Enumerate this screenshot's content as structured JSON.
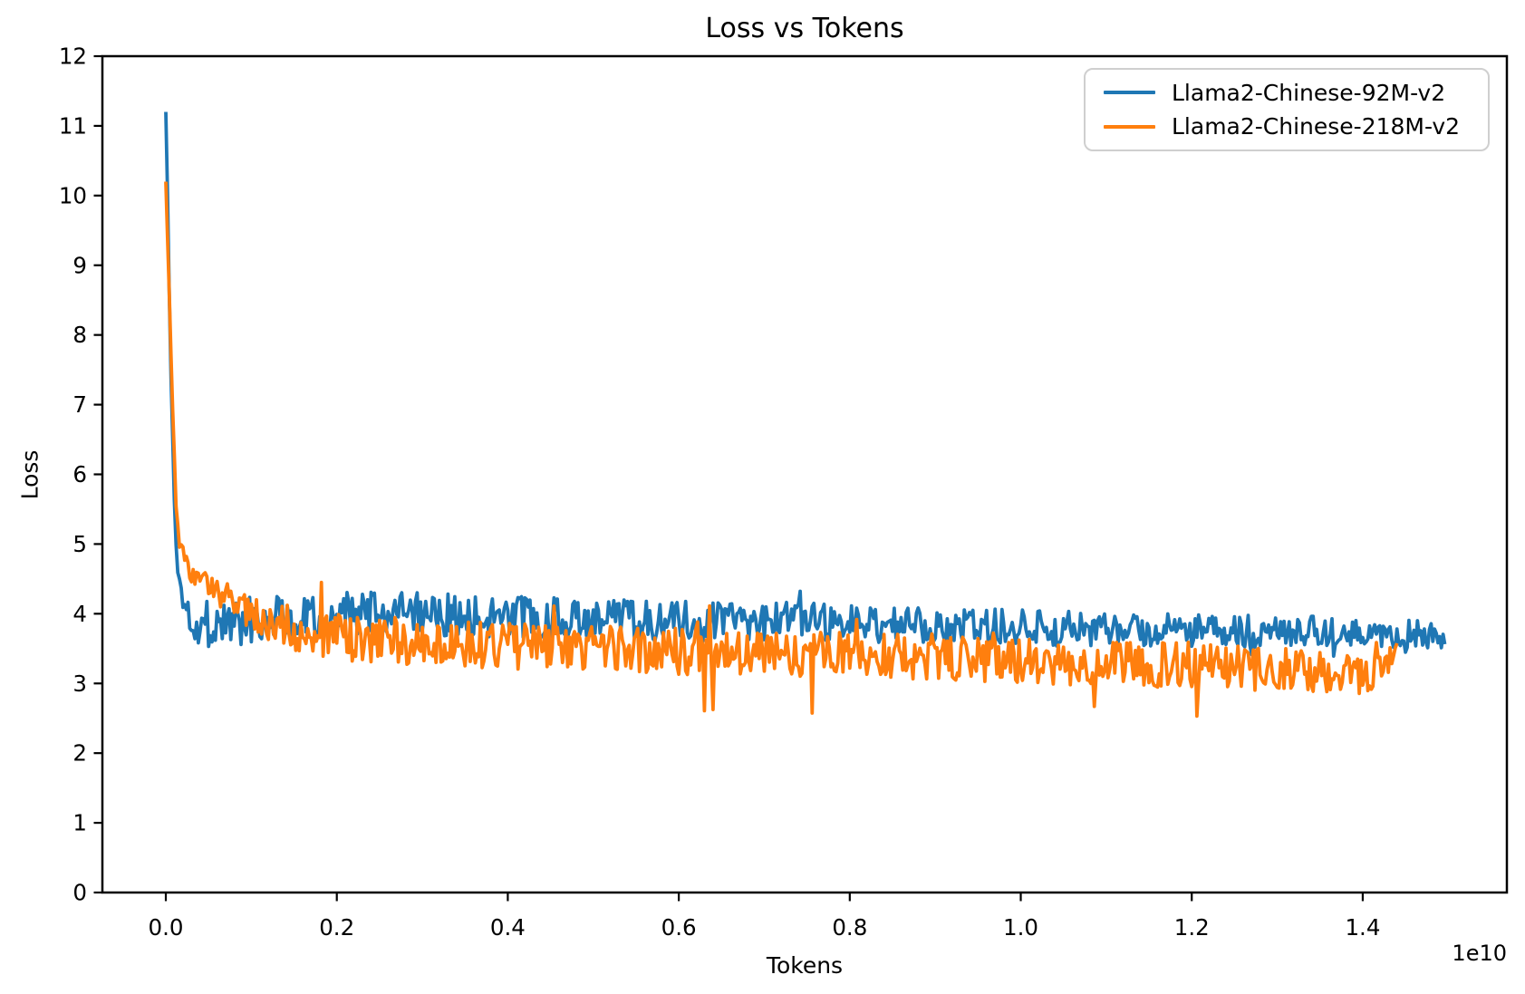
{
  "title": "Loss vs Tokens",
  "axes": {
    "xlabel": "Tokens",
    "ylabel": "Loss",
    "x_offset_label": "1e10"
  },
  "legend": {
    "position": "upper right",
    "entries": [
      {
        "label": "Llama2-Chinese-92M-v2",
        "color": "#1f77b4"
      },
      {
        "label": "Llama2-Chinese-218M-v2",
        "color": "#ff7f0e"
      }
    ]
  },
  "chart_data": {
    "type": "line",
    "title": "Loss vs Tokens",
    "xlabel": "Tokens",
    "ylabel": "Loss",
    "x_offset_label": "1e10",
    "x_unit": 10000000000,
    "xlim": [
      -0.0742,
      1.5686
    ],
    "ylim": [
      0,
      12
    ],
    "grid": false,
    "x_ticks": {
      "values": [
        0.0,
        0.2,
        0.4,
        0.6,
        0.8,
        1.0,
        1.2,
        1.4
      ],
      "labels": [
        "0.0",
        "0.2",
        "0.4",
        "0.6",
        "0.8",
        "1.0",
        "1.2",
        "1.4"
      ]
    },
    "y_ticks": {
      "values": [
        0,
        1,
        2,
        3,
        4,
        5,
        6,
        7,
        8,
        9,
        10,
        11,
        12
      ],
      "labels": [
        "0",
        "1",
        "2",
        "3",
        "4",
        "5",
        "6",
        "7",
        "8",
        "9",
        "10",
        "11",
        "12"
      ]
    },
    "noise_step": 0.002,
    "series": [
      {
        "name": "Llama2-Chinese-92M-v2",
        "color": "#1f77b4",
        "x_end": 1.497,
        "seed": 1337,
        "spikes": {
          "down_p": 0.012,
          "down_mag": 0.5,
          "up_p": 0.005,
          "up_mag": 0.35
        },
        "trend": [
          [
            0.0,
            11.2,
            0.0
          ],
          [
            0.002,
            10.0,
            0.03
          ],
          [
            0.004,
            8.6,
            0.05
          ],
          [
            0.006,
            7.4,
            0.06
          ],
          [
            0.008,
            6.5,
            0.08
          ],
          [
            0.01,
            5.6,
            0.08
          ],
          [
            0.012,
            5.0,
            0.1
          ],
          [
            0.014,
            4.65,
            0.1
          ],
          [
            0.017,
            4.4,
            0.12
          ],
          [
            0.02,
            4.2,
            0.18
          ],
          [
            0.03,
            3.95,
            0.3
          ],
          [
            0.05,
            3.85,
            0.35
          ],
          [
            0.08,
            3.9,
            0.37
          ],
          [
            0.12,
            3.97,
            0.35
          ],
          [
            0.2,
            4.0,
            0.32
          ],
          [
            0.3,
            3.99,
            0.31
          ],
          [
            0.4,
            3.96,
            0.3
          ],
          [
            0.5,
            3.93,
            0.3
          ],
          [
            0.6,
            3.92,
            0.28
          ],
          [
            0.7,
            3.9,
            0.28
          ],
          [
            0.8,
            3.86,
            0.27
          ],
          [
            0.9,
            3.83,
            0.26
          ],
          [
            1.0,
            3.8,
            0.26
          ],
          [
            1.1,
            3.78,
            0.25
          ],
          [
            1.2,
            3.76,
            0.24
          ],
          [
            1.3,
            3.75,
            0.23
          ],
          [
            1.4,
            3.74,
            0.22
          ],
          [
            1.497,
            3.72,
            0.21
          ]
        ]
      },
      {
        "name": "Llama2-Chinese-218M-v2",
        "color": "#ff7f0e",
        "x_end": 1.441,
        "seed": 777,
        "spikes": {
          "down_p": 0.014,
          "down_mag": 1.0,
          "up_p": 0.007,
          "up_mag": 0.8
        },
        "trend": [
          [
            0.0,
            10.2,
            0.0
          ],
          [
            0.004,
            8.6,
            0.04
          ],
          [
            0.008,
            6.9,
            0.06
          ],
          [
            0.012,
            5.6,
            0.08
          ],
          [
            0.016,
            4.95,
            0.1
          ],
          [
            0.022,
            4.8,
            0.12
          ],
          [
            0.03,
            4.6,
            0.15
          ],
          [
            0.045,
            4.45,
            0.2
          ],
          [
            0.06,
            4.3,
            0.22
          ],
          [
            0.08,
            4.15,
            0.25
          ],
          [
            0.1,
            4.02,
            0.28
          ],
          [
            0.13,
            3.85,
            0.32
          ],
          [
            0.2,
            3.67,
            0.34
          ],
          [
            0.3,
            3.58,
            0.34
          ],
          [
            0.4,
            3.54,
            0.33
          ],
          [
            0.5,
            3.5,
            0.33
          ],
          [
            0.6,
            3.46,
            0.33
          ],
          [
            0.7,
            3.44,
            0.34
          ],
          [
            0.8,
            3.41,
            0.33
          ],
          [
            0.9,
            3.38,
            0.34
          ],
          [
            1.0,
            3.32,
            0.34
          ],
          [
            1.1,
            3.28,
            0.33
          ],
          [
            1.2,
            3.26,
            0.34
          ],
          [
            1.3,
            3.21,
            0.32
          ],
          [
            1.35,
            3.17,
            0.3
          ],
          [
            1.4,
            3.12,
            0.27
          ],
          [
            1.425,
            3.22,
            0.22
          ],
          [
            1.441,
            3.55,
            0.1
          ]
        ]
      }
    ]
  }
}
